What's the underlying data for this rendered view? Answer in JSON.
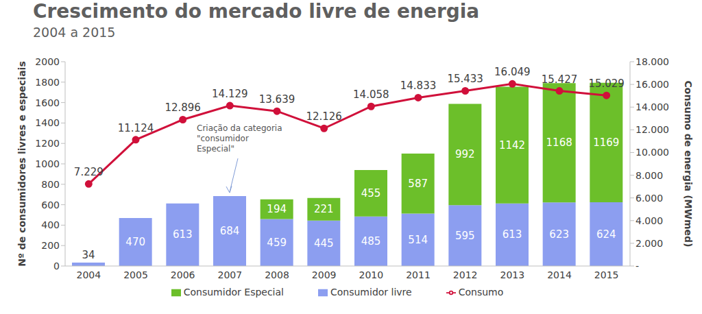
{
  "chart_data": {
    "type": "bar",
    "title": "Crescimento do mercado livre de energia",
    "subtitle": "2004 a 2015",
    "categories": [
      "2004",
      "2005",
      "2006",
      "2007",
      "2008",
      "2009",
      "2010",
      "2011",
      "2012",
      "2013",
      "2014",
      "2015"
    ],
    "series": [
      {
        "name": "Consumidor livre",
        "type": "bar",
        "color": "#8c9ef0",
        "values": [
          34,
          470,
          613,
          684,
          459,
          445,
          485,
          514,
          595,
          613,
          623,
          624
        ]
      },
      {
        "name": "Consumidor Especial",
        "type": "bar",
        "color": "#6cbf2a",
        "values": [
          null,
          null,
          null,
          null,
          194,
          221,
          455,
          587,
          992,
          1142,
          1168,
          1169
        ]
      },
      {
        "name": "Consumo",
        "type": "line",
        "axis": "y2",
        "color": "#d0103a",
        "marker": "circle",
        "values": [
          7229,
          11124,
          12896,
          14129,
          13639,
          12126,
          14058,
          14833,
          15433,
          16049,
          15427,
          15029
        ],
        "value_labels": [
          "7.229",
          "11.124",
          "12.896",
          "14.129",
          "13.639",
          "12.126",
          "14.058",
          "14.833",
          "15.433",
          "16.049",
          "15.427",
          "15.029"
        ]
      }
    ],
    "y_label": "Nº de consumidores livres e especiais",
    "y2_label": "Consumo de energia (MWmed)",
    "ylim": [
      0,
      2000
    ],
    "yticks": [
      0,
      200,
      400,
      600,
      800,
      1000,
      1200,
      1400,
      1600,
      1800,
      2000
    ],
    "y2lim": [
      0,
      18000
    ],
    "y2ticks": [
      {
        "value": 0,
        "label": "-"
      },
      {
        "value": 2000,
        "label": "2.000"
      },
      {
        "value": 4000,
        "label": "4.000"
      },
      {
        "value": 6000,
        "label": "6.000"
      },
      {
        "value": 8000,
        "label": "8.000"
      },
      {
        "value": 10000,
        "label": "10.000"
      },
      {
        "value": 12000,
        "label": "12.000"
      },
      {
        "value": 14000,
        "label": "14.000"
      },
      {
        "value": 16000,
        "label": "16.000"
      },
      {
        "value": 18000,
        "label": "18.000"
      }
    ],
    "stacked": true,
    "data_labels": true,
    "grid": false,
    "legend": "bottom",
    "annotations": [
      {
        "text": "Criação da categoria \"consumidor Especial\"",
        "x": "2007"
      }
    ]
  }
}
